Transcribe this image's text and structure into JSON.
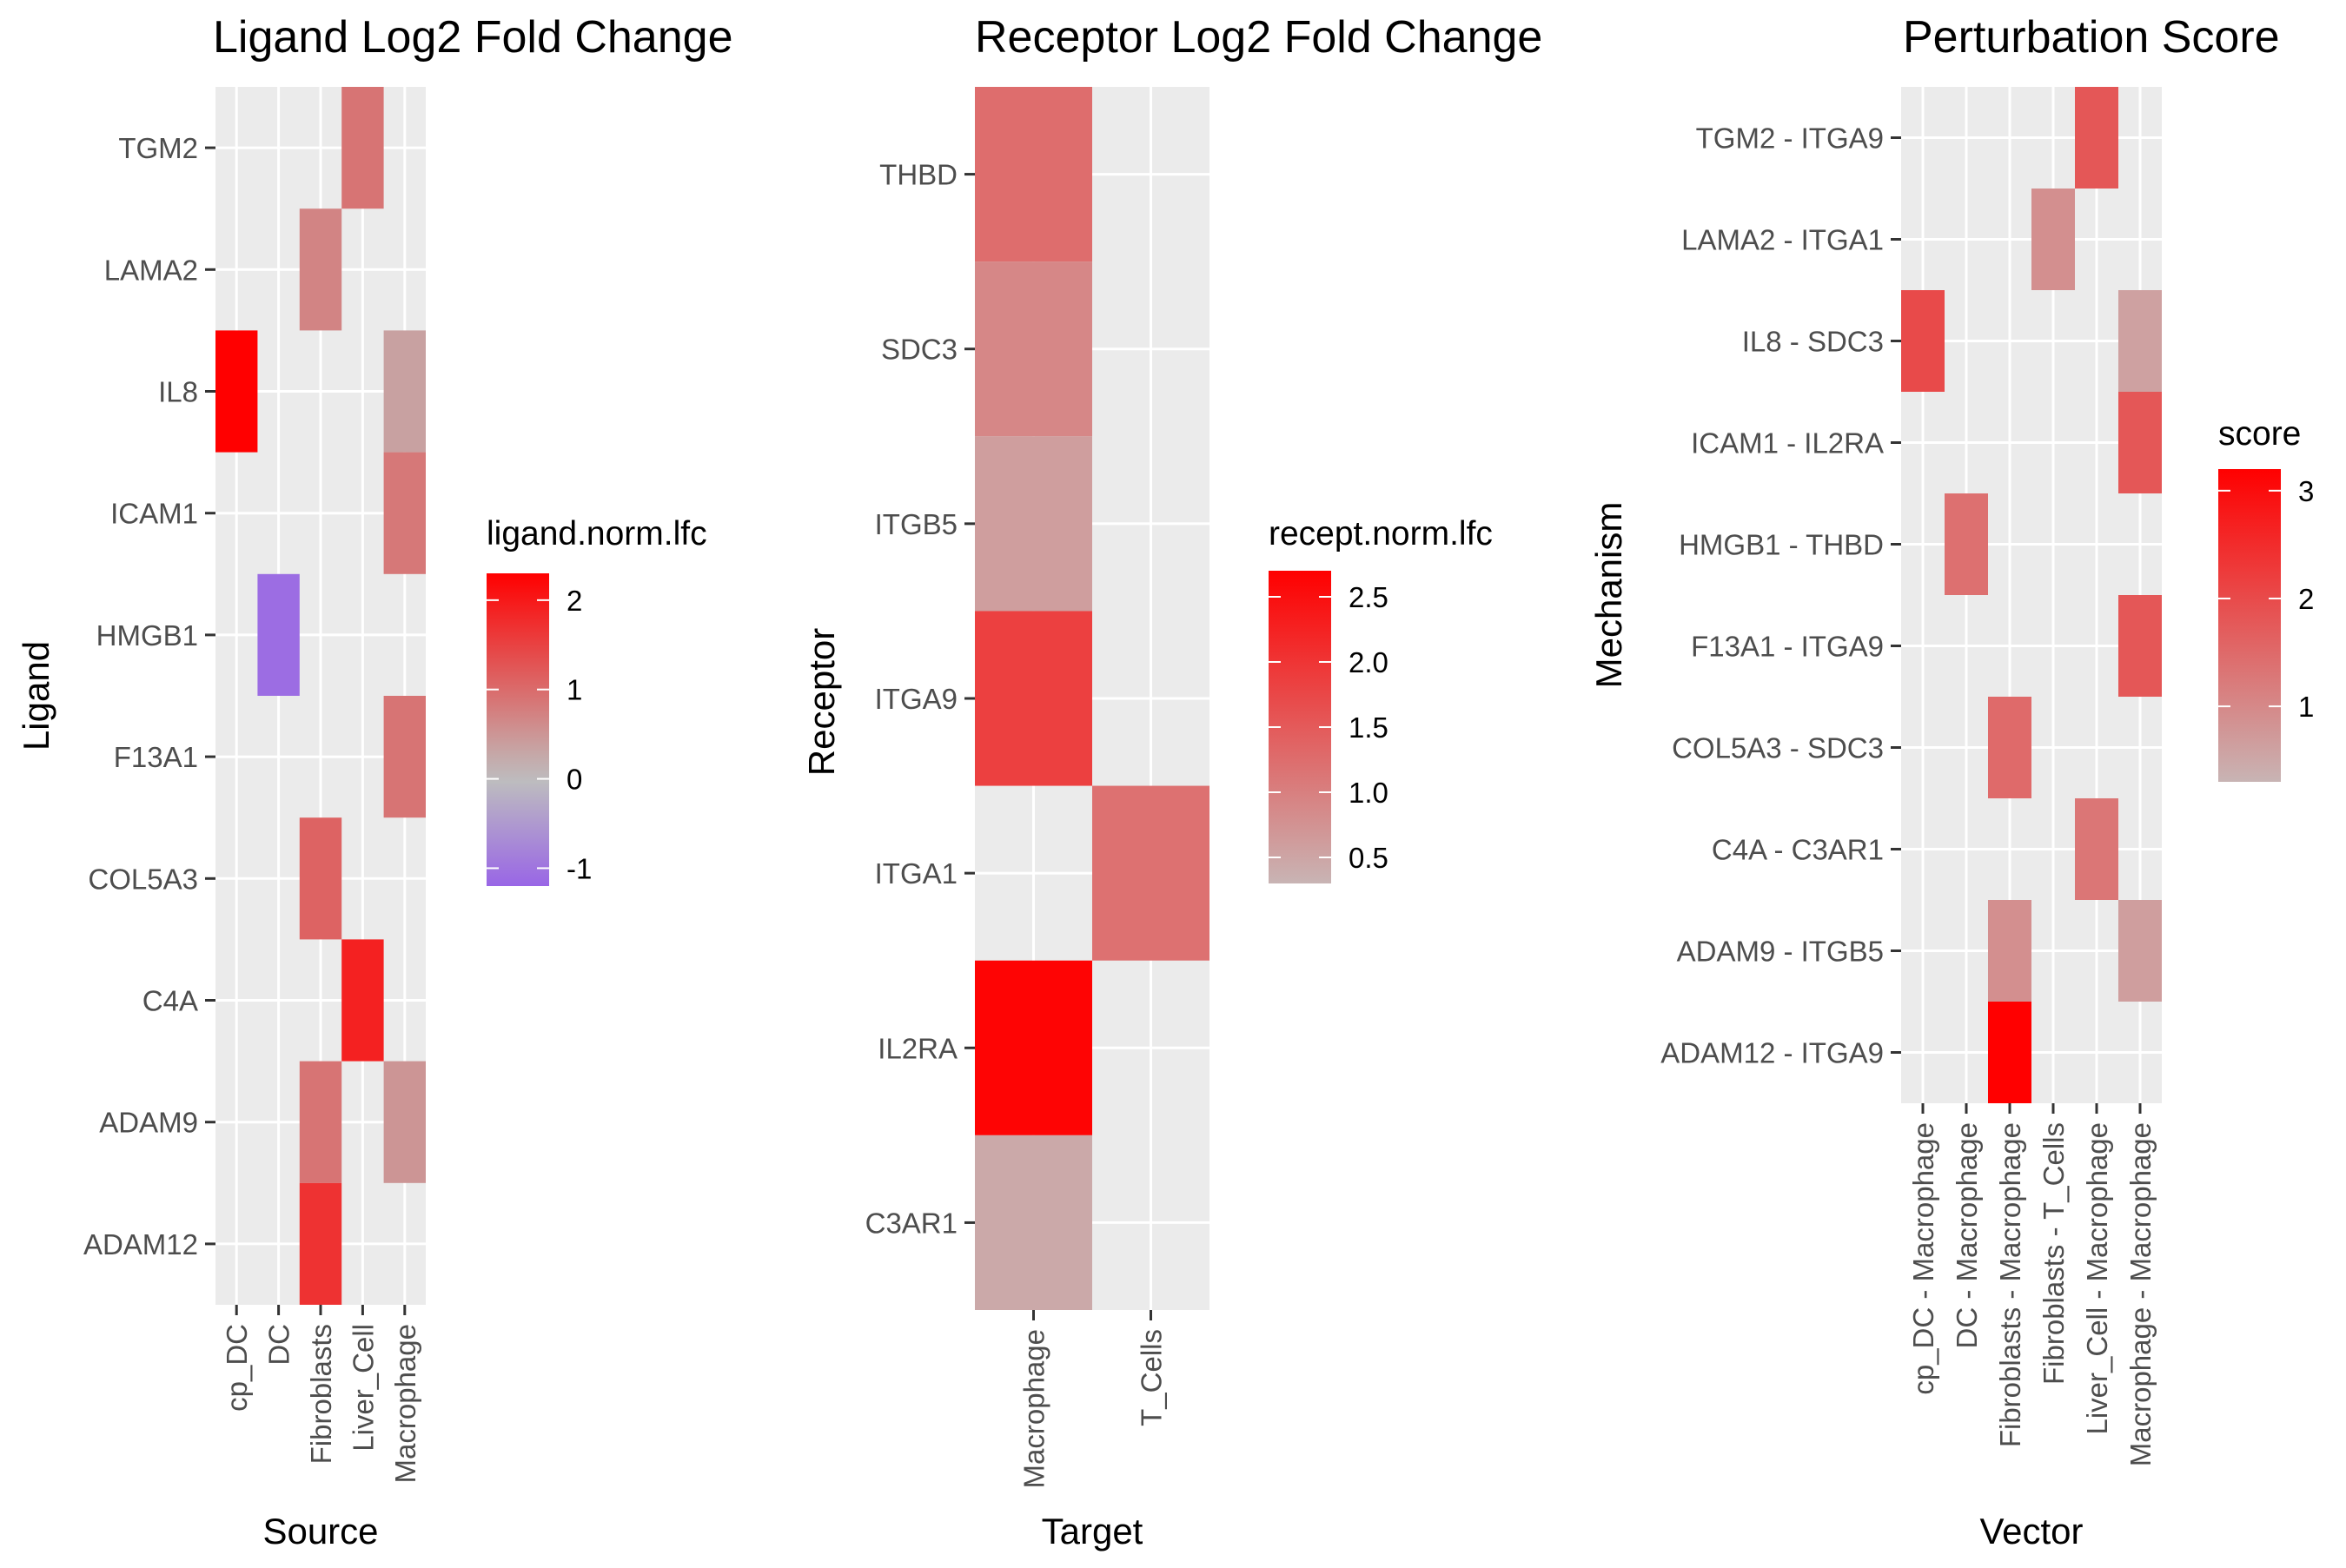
{
  "chart_data": [
    {
      "type": "heatmap",
      "title": "Ligand Log2 Fold Change",
      "xlabel": "Source",
      "ylabel": "Ligand",
      "x": [
        "cp_DC",
        "DC",
        "Fibroblasts",
        "Liver_Cell",
        "Macrophage"
      ],
      "y": [
        "TGM2",
        "LAMA2",
        "IL8",
        "ICAM1",
        "HMGB1",
        "F13A1",
        "COL5A3",
        "C4A",
        "ADAM9",
        "ADAM12"
      ],
      "cells": [
        {
          "x": "Liver_Cell",
          "y": "TGM2",
          "value": 0.9
        },
        {
          "x": "Fibroblasts",
          "y": "LAMA2",
          "value": 0.7
        },
        {
          "x": "cp_DC",
          "y": "IL8",
          "value": 2.3
        },
        {
          "x": "Macrophage",
          "y": "IL8",
          "value": 0.35
        },
        {
          "x": "Macrophage",
          "y": "ICAM1",
          "value": 0.85
        },
        {
          "x": "DC",
          "y": "HMGB1",
          "value": -1.1
        },
        {
          "x": "Macrophage",
          "y": "F13A1",
          "value": 0.9
        },
        {
          "x": "Fibroblasts",
          "y": "COL5A3",
          "value": 1.1
        },
        {
          "x": "Liver_Cell",
          "y": "C4A",
          "value": 1.9
        },
        {
          "x": "Fibroblasts",
          "y": "ADAM9",
          "value": 0.9
        },
        {
          "x": "Macrophage",
          "y": "ADAM9",
          "value": 0.5
        },
        {
          "x": "Fibroblasts",
          "y": "ADAM12",
          "value": 1.7
        }
      ],
      "legend": {
        "title": "ligand.norm.lfc",
        "ticks": [
          "2",
          "1",
          "0",
          "-1"
        ],
        "tick_values": [
          2,
          1,
          0,
          -1
        ],
        "range": [
          -1.2,
          2.3
        ],
        "colors": {
          "low": "#9966e6",
          "mid": "#bebebe",
          "high": "#ff0000"
        }
      }
    },
    {
      "type": "heatmap",
      "title": "Receptor Log2 Fold Change",
      "xlabel": "Target",
      "ylabel": "Receptor",
      "x": [
        "Macrophage",
        "T_Cells"
      ],
      "y": [
        "THBD",
        "SDC3",
        "ITGB5",
        "ITGA9",
        "ITGA1",
        "IL2RA",
        "C3AR1"
      ],
      "cells": [
        {
          "x": "Macrophage",
          "y": "THBD",
          "value": 1.25
        },
        {
          "x": "Macrophage",
          "y": "SDC3",
          "value": 0.9
        },
        {
          "x": "Macrophage",
          "y": "ITGB5",
          "value": 0.6
        },
        {
          "x": "Macrophage",
          "y": "ITGA9",
          "value": 1.85
        },
        {
          "x": "T_Cells",
          "y": "ITGA1",
          "value": 1.2
        },
        {
          "x": "Macrophage",
          "y": "IL2RA",
          "value": 2.65
        },
        {
          "x": "Macrophage",
          "y": "C3AR1",
          "value": 0.45
        }
      ],
      "legend": {
        "title": "recept.norm.lfc",
        "ticks": [
          "2.5",
          "2.0",
          "1.5",
          "1.0",
          "0.5"
        ],
        "tick_values": [
          2.5,
          2.0,
          1.5,
          1.0,
          0.5
        ],
        "range": [
          0.3,
          2.7
        ],
        "colors": {
          "low": "#c8b4b4",
          "high": "#ff0000"
        }
      }
    },
    {
      "type": "heatmap",
      "title": "Perturbation Score",
      "xlabel": "Vector",
      "ylabel": "Mechanism",
      "x": [
        "cp_DC - Macrophage",
        "DC - Macrophage",
        "Fibroblasts - Macrophage",
        "Fibroblasts - T_Cells",
        "Liver_Cell - Macrophage",
        "Macrophage - Macrophage"
      ],
      "y": [
        "TGM2 - ITGA9",
        "LAMA2 - ITGA1",
        "IL8 - SDC3",
        "ICAM1 - IL2RA",
        "HMGB1 - THBD",
        "F13A1 - ITGA9",
        "COL5A3 - SDC3",
        "C4A - C3AR1",
        "ADAM9 - ITGB5",
        "ADAM12 - ITGA9"
      ],
      "cells": [
        {
          "x": "Liver_Cell - Macrophage",
          "y": "TGM2 - ITGA9",
          "value": 1.8
        },
        {
          "x": "Fibroblasts - T_Cells",
          "y": "LAMA2 - ITGA1",
          "value": 0.9
        },
        {
          "x": "cp_DC - Macrophage",
          "y": "IL8 - SDC3",
          "value": 2.0
        },
        {
          "x": "Macrophage - Macrophage",
          "y": "IL8 - SDC3",
          "value": 0.6
        },
        {
          "x": "Macrophage - Macrophage",
          "y": "ICAM1 - IL2RA",
          "value": 1.8
        },
        {
          "x": "DC - Macrophage",
          "y": "HMGB1 - THBD",
          "value": 1.4
        },
        {
          "x": "Macrophage - Macrophage",
          "y": "F13A1 - ITGA9",
          "value": 1.8
        },
        {
          "x": "Fibroblasts - Macrophage",
          "y": "COL5A3 - SDC3",
          "value": 1.5
        },
        {
          "x": "Liver_Cell - Macrophage",
          "y": "C4A - C3AR1",
          "value": 1.3
        },
        {
          "x": "Fibroblasts - Macrophage",
          "y": "ADAM9 - ITGB5",
          "value": 0.9
        },
        {
          "x": "Macrophage - Macrophage",
          "y": "ADAM9 - ITGB5",
          "value": 0.65
        },
        {
          "x": "Fibroblasts - Macrophage",
          "y": "ADAM12 - ITGA9",
          "value": 3.2
        }
      ],
      "legend": {
        "title": "score",
        "ticks": [
          "3",
          "2",
          "1"
        ],
        "tick_values": [
          3,
          2,
          1
        ],
        "range": [
          0.3,
          3.2
        ],
        "colors": {
          "low": "#c8b4b4",
          "high": "#ff0000"
        }
      }
    }
  ]
}
